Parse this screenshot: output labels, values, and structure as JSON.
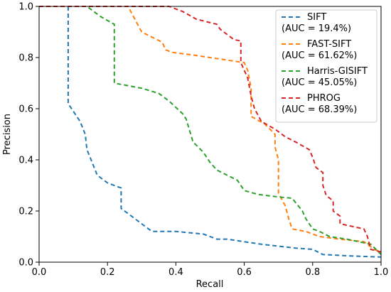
{
  "chart_data": {
    "type": "line",
    "title": "",
    "xlabel": "Recall",
    "ylabel": "Precision",
    "xlim": [
      0.0,
      1.0
    ],
    "ylim": [
      0.0,
      1.0
    ],
    "xticks": [
      "0.0",
      "0.2",
      "0.4",
      "0.6",
      "0.8",
      "1.0"
    ],
    "yticks": [
      "0.0",
      "0.2",
      "0.4",
      "0.6",
      "0.8",
      "1.0"
    ],
    "grid": false,
    "legend_position": "top-right",
    "line_style": "dashed",
    "series": [
      {
        "name": "SIFT",
        "auc_label": "(AUC = 19.4%)",
        "color": "#1f77b4",
        "points": [
          [
            0.085,
            1.0
          ],
          [
            0.085,
            0.62
          ],
          [
            0.12,
            0.55
          ],
          [
            0.135,
            0.5
          ],
          [
            0.14,
            0.44
          ],
          [
            0.155,
            0.39
          ],
          [
            0.17,
            0.34
          ],
          [
            0.2,
            0.31
          ],
          [
            0.24,
            0.29
          ],
          [
            0.24,
            0.21
          ],
          [
            0.26,
            0.19
          ],
          [
            0.28,
            0.17
          ],
          [
            0.3,
            0.15
          ],
          [
            0.32,
            0.13
          ],
          [
            0.33,
            0.12
          ],
          [
            0.4,
            0.12
          ],
          [
            0.48,
            0.11
          ],
          [
            0.5,
            0.1
          ],
          [
            0.52,
            0.09
          ],
          [
            0.55,
            0.09
          ],
          [
            0.6,
            0.08
          ],
          [
            0.65,
            0.07
          ],
          [
            0.75,
            0.055
          ],
          [
            0.8,
            0.05
          ],
          [
            0.83,
            0.03
          ],
          [
            0.9,
            0.025
          ],
          [
            1.0,
            0.02
          ]
        ]
      },
      {
        "name": "FAST-SIFT",
        "auc_label": "(AUC = 61.62%)",
        "color": "#ff7f0e",
        "points": [
          [
            0.0,
            1.0
          ],
          [
            0.26,
            1.0
          ],
          [
            0.28,
            0.95
          ],
          [
            0.3,
            0.9
          ],
          [
            0.33,
            0.88
          ],
          [
            0.36,
            0.86
          ],
          [
            0.37,
            0.83
          ],
          [
            0.39,
            0.82
          ],
          [
            0.45,
            0.81
          ],
          [
            0.55,
            0.79
          ],
          [
            0.6,
            0.78
          ],
          [
            0.61,
            0.75
          ],
          [
            0.62,
            0.68
          ],
          [
            0.62,
            0.57
          ],
          [
            0.66,
            0.54
          ],
          [
            0.69,
            0.5
          ],
          [
            0.69,
            0.45
          ],
          [
            0.7,
            0.4
          ],
          [
            0.7,
            0.27
          ],
          [
            0.72,
            0.22
          ],
          [
            0.73,
            0.17
          ],
          [
            0.74,
            0.13
          ],
          [
            0.78,
            0.12
          ],
          [
            0.82,
            0.1
          ],
          [
            0.88,
            0.09
          ],
          [
            0.95,
            0.08
          ],
          [
            0.98,
            0.05
          ],
          [
            1.0,
            0.04
          ]
        ]
      },
      {
        "name": "Harris-GISIFT",
        "auc_label": "(AUC = 45.05%)",
        "color": "#2ca02c",
        "points": [
          [
            0.0,
            1.0
          ],
          [
            0.14,
            1.0
          ],
          [
            0.18,
            0.96
          ],
          [
            0.22,
            0.93
          ],
          [
            0.22,
            0.7
          ],
          [
            0.3,
            0.68
          ],
          [
            0.35,
            0.66
          ],
          [
            0.38,
            0.63
          ],
          [
            0.42,
            0.58
          ],
          [
            0.43,
            0.56
          ],
          [
            0.45,
            0.47
          ],
          [
            0.48,
            0.43
          ],
          [
            0.5,
            0.39
          ],
          [
            0.52,
            0.36
          ],
          [
            0.55,
            0.34
          ],
          [
            0.58,
            0.32
          ],
          [
            0.6,
            0.28
          ],
          [
            0.64,
            0.265
          ],
          [
            0.7,
            0.255
          ],
          [
            0.74,
            0.25
          ],
          [
            0.77,
            0.2
          ],
          [
            0.78,
            0.17
          ],
          [
            0.8,
            0.13
          ],
          [
            0.82,
            0.12
          ],
          [
            0.85,
            0.1
          ],
          [
            0.9,
            0.09
          ],
          [
            0.97,
            0.07
          ],
          [
            1.0,
            0.03
          ]
        ]
      },
      {
        "name": "PHROG",
        "auc_label": "(AUC = 68.39%)",
        "color": "#d62728",
        "points": [
          [
            0.0,
            1.0
          ],
          [
            0.38,
            1.0
          ],
          [
            0.42,
            0.98
          ],
          [
            0.46,
            0.95
          ],
          [
            0.49,
            0.94
          ],
          [
            0.52,
            0.93
          ],
          [
            0.53,
            0.91
          ],
          [
            0.56,
            0.88
          ],
          [
            0.57,
            0.87
          ],
          [
            0.59,
            0.865
          ],
          [
            0.59,
            0.78
          ],
          [
            0.61,
            0.72
          ],
          [
            0.62,
            0.65
          ],
          [
            0.63,
            0.6
          ],
          [
            0.65,
            0.55
          ],
          [
            0.69,
            0.52
          ],
          [
            0.72,
            0.49
          ],
          [
            0.75,
            0.47
          ],
          [
            0.79,
            0.44
          ],
          [
            0.8,
            0.41
          ],
          [
            0.81,
            0.37
          ],
          [
            0.83,
            0.35
          ],
          [
            0.83,
            0.3
          ],
          [
            0.84,
            0.26
          ],
          [
            0.86,
            0.24
          ],
          [
            0.86,
            0.2
          ],
          [
            0.88,
            0.18
          ],
          [
            0.88,
            0.15
          ],
          [
            0.95,
            0.13
          ],
          [
            0.96,
            0.1
          ],
          [
            0.97,
            0.05
          ],
          [
            1.0,
            0.04
          ]
        ]
      }
    ]
  }
}
